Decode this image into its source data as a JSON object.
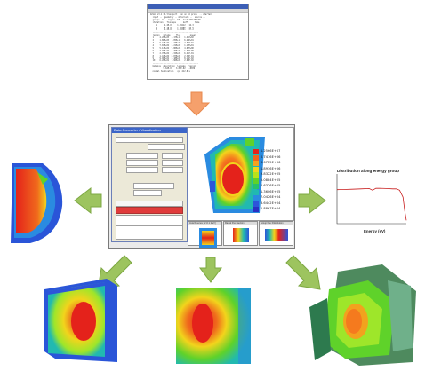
{
  "console": {
    "lines": [
      "ACSLV v3.1 3D-transport  run on 16 procs  .. started",
      "  input ..  geometry .. materials ..  source ..",
      "  groups  42   angles  S8   mesh 240x180x96",
      "  iteration   flux eps      keff      time",
      "     1      2.4E-01    1.00412   12.3",
      "     2      8.1E-02    1.00388   24.9",
      "     3      2.2E-02    1.00391   37.2",
      "  ---------------------------------------",
      "  region   volume     flux        power",
      "  1     4.20E+03  3.17E+10   1.21E+02",
      "  2     1.88E+03  1.05E+10   6.44E+01",
      "  3     9.41E+02  5.73E+09   2.05E+01",
      "  4     7.02E+02  2.21E+09   1.12E+01",
      "  5     5.14E+02  9.80E+08   4.07E+00",
      "  6     3.36E+02  4.45E+08   1.96E+00",
      "  7     2.70E+02  1.32E+08   6.21E-01",
      "  8     1.44E+02  6.07E+07   2.33E-01",
      "  9     9.90E+01  2.18E+07   8.15E-02",
      "  10    6.20E+01  7.96E+06   2.90E-02",
      "  ---------------------------------------",
      "  balance  absorption  leakage  fission",
      "           9.62E-01   3.81E-02  1.0039",
      "  normal termination   cpu 412.8 s"
    ]
  },
  "app": {
    "dialog_title": "Data Converter / Visualization",
    "view_title": "ACSLV Viewer",
    "thumb_titles": [
      "Axial Fluence [E>0.1 MeV]",
      "Radial Flux Section",
      "Group Flux Distribution"
    ]
  },
  "legend": {
    "values": [
      "1.2566E+07",
      "6.7416E+06",
      "3.6725E+06",
      "1.8936E+06",
      "9.8322E+05",
      "5.0884E+05",
      "2.6326E+05",
      "1.3606E+05",
      "7.0426E+04",
      "3.6442E+04",
      "1.8867E+04"
    ],
    "colors": [
      "#e4221b",
      "#f0651c",
      "#f6a21e",
      "#f2d41c",
      "#b9e21a",
      "#5fd22a",
      "#27c26b",
      "#21b9b0",
      "#2a8be0",
      "#2d55d9",
      "#2a2fc2"
    ]
  },
  "chart_data": {
    "type": "line",
    "title": "Distribution along energy group",
    "xlabel": "Energy (eV)",
    "ylabel": "",
    "x": [
      1,
      5,
      10,
      15,
      20,
      22,
      24,
      26,
      30,
      34,
      36,
      38,
      40,
      41,
      42
    ],
    "series": [
      {
        "values": [
          2.05,
          2.06,
          2.08,
          2.1,
          2.12,
          2.02,
          2.13,
          2.14,
          2.12,
          2.1,
          2.1,
          2.02,
          1.6,
          0.8,
          0.2
        ]
      }
    ],
    "xlim": [
      1,
      42
    ],
    "ylim": [
      0,
      3
    ],
    "grid": false,
    "colors": {
      "line": "#c81e1e"
    }
  },
  "colors": {
    "arrow_orange": "#f5a06c",
    "arrow_green": "#9dc45f",
    "arrow_green_edge": "#7da843"
  }
}
